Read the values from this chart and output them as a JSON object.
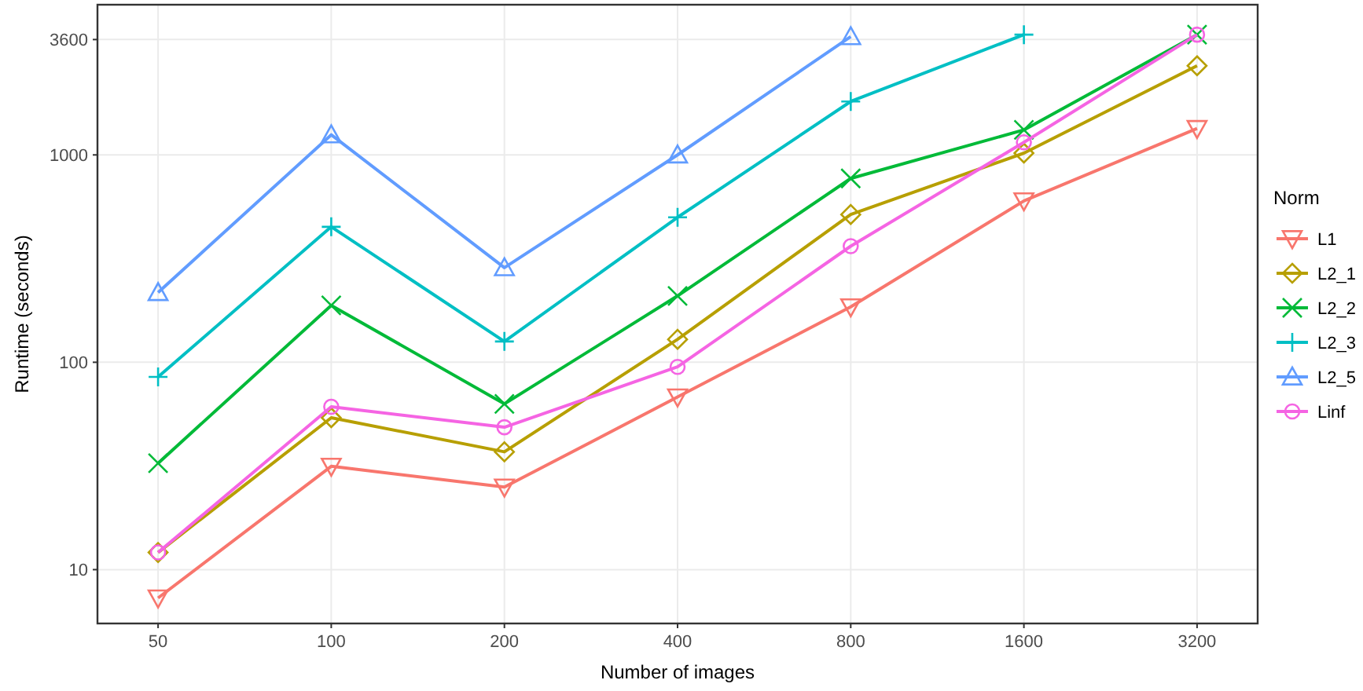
{
  "chart_data": {
    "type": "line",
    "xlabel": "Number of images",
    "ylabel": "Runtime (seconds)",
    "legend_title": "Norm",
    "categories": [
      "50",
      "100",
      "200",
      "400",
      "800",
      "1600",
      "3200"
    ],
    "log": "y",
    "ylim": [
      5.5,
      5300
    ],
    "yticks": [
      10,
      100,
      1000,
      3600
    ],
    "grid": true,
    "legend": "right",
    "line_style": "solid",
    "series": [
      {
        "name": "L1",
        "color": "#f8766d",
        "marker": "triangle-down",
        "values": [
          7.3,
          31.5,
          25,
          68,
          185,
          600,
          1340
        ]
      },
      {
        "name": "L2_1",
        "color": "#b79f00",
        "marker": "diamond",
        "values": [
          12.1,
          54,
          37,
          129,
          516,
          1020,
          2690
        ]
      },
      {
        "name": "L2_2",
        "color": "#00ba38",
        "marker": "x",
        "values": [
          32.6,
          188,
          63,
          209,
          770,
          1320,
          3800
        ]
      },
      {
        "name": "L2_3",
        "color": "#00bfc4",
        "marker": "cross",
        "values": [
          85,
          450,
          126,
          500,
          1810,
          3800,
          null
        ]
      },
      {
        "name": "L2_5",
        "color": "#619cff",
        "marker": "triangle",
        "values": [
          217,
          1250,
          286,
          1000,
          3720,
          null,
          null
        ]
      },
      {
        "name": "Linf",
        "color": "#f564e3",
        "marker": "circle",
        "values": [
          12.1,
          61,
          48.6,
          95,
          363,
          1150,
          3800
        ]
      }
    ]
  }
}
